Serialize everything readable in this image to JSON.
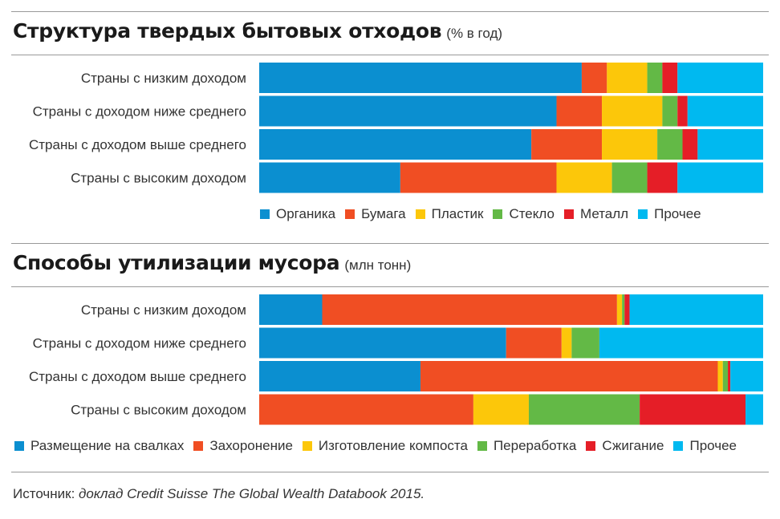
{
  "source": {
    "label": "Источник:",
    "publication": "доклад Credit Suisse The Global Wealth Databook 2015."
  },
  "chart_data": [
    {
      "type": "bar",
      "stacked": true,
      "orientation": "horizontal",
      "title": "Структура твердых бытовых отходов",
      "subtitle": "(% в год)",
      "categories": [
        "Страны с низким доходом",
        "Страны с доходом ниже среднего",
        "Страны с доходом выше среднего",
        "Страны с высоким доходом"
      ],
      "xlim": [
        0,
        100
      ],
      "legend_position": "bottom",
      "series": [
        {
          "name": "Органика",
          "color": "#0b8fd0",
          "values": [
            64,
            59,
            54,
            28
          ]
        },
        {
          "name": "Бумага",
          "color": "#f04e23",
          "values": [
            5,
            9,
            14,
            31
          ]
        },
        {
          "name": "Пластик",
          "color": "#fcc70a",
          "values": [
            8,
            12,
            11,
            11
          ]
        },
        {
          "name": "Стекло",
          "color": "#63b946",
          "values": [
            3,
            3,
            5,
            7
          ]
        },
        {
          "name": "Металл",
          "color": "#e51e27",
          "values": [
            3,
            2,
            3,
            6
          ]
        },
        {
          "name": "Прочее",
          "color": "#00b9f0",
          "values": [
            17,
            15,
            13,
            17
          ]
        }
      ]
    },
    {
      "type": "bar",
      "stacked": true,
      "orientation": "horizontal",
      "title": "Способы утилизации мусора",
      "subtitle": "(млн тонн)",
      "categories": [
        "Страны с низким доходом",
        "Страны с доходом ниже среднего",
        "Страны с доходом выше среднего",
        "Страны с высоким доходом"
      ],
      "xlim": [
        0,
        100
      ],
      "legend_position": "bottom",
      "series": [
        {
          "name": "Размещение на свалках",
          "color": "#0b8fd0",
          "values": [
            12.5,
            49,
            32,
            0
          ]
        },
        {
          "name": "Захоронение",
          "color": "#f04e23",
          "values": [
            58.5,
            11,
            59,
            42.5
          ]
        },
        {
          "name": "Изготовление компоста",
          "color": "#fcc70a",
          "values": [
            1,
            2,
            1,
            11
          ]
        },
        {
          "name": "Переработка",
          "color": "#63b946",
          "values": [
            0.5,
            5.5,
            1,
            22
          ]
        },
        {
          "name": "Сжигание",
          "color": "#e51e27",
          "values": [
            1,
            0,
            0.5,
            21
          ]
        },
        {
          "name": "Прочее",
          "color": "#00b9f0",
          "values": [
            26.5,
            32.5,
            6.5,
            3.5
          ]
        }
      ]
    }
  ]
}
